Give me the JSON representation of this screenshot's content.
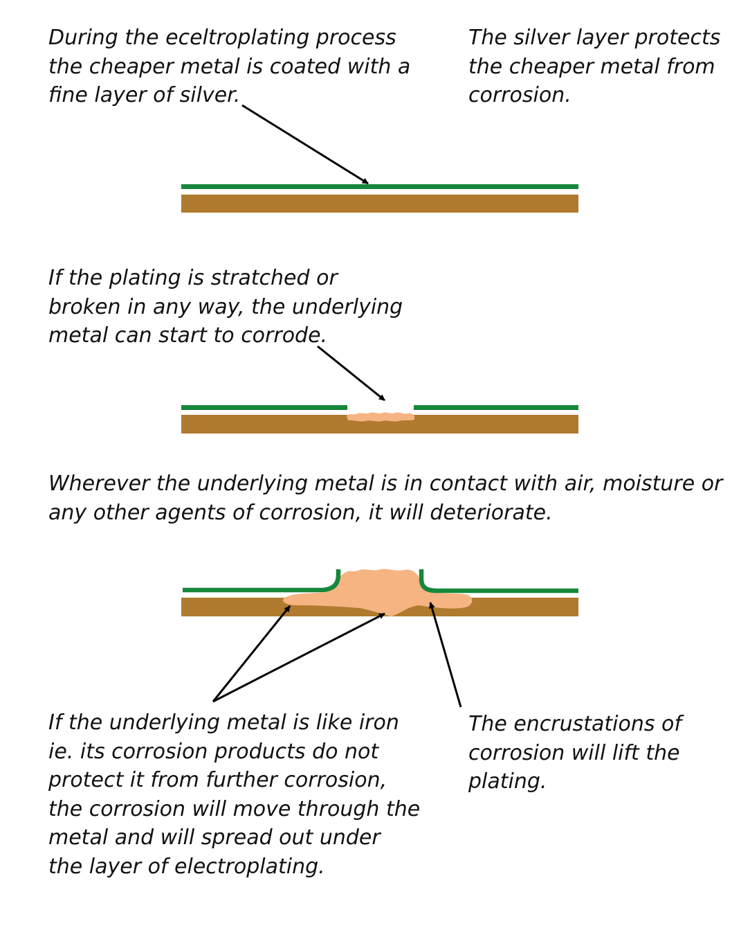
{
  "captions": {
    "electroplating": {
      "lines": [
        "During the eceltroplating process",
        "the cheaper metal is coated with a",
        "fine layer of silver."
      ]
    },
    "protection": {
      "lines": [
        "The silver layer protects",
        "the cheaper metal from",
        "corrosion."
      ]
    },
    "scratch": {
      "lines": [
        "If the plating is stratched or",
        "broken in any way, the underlying",
        "metal can start to corrode."
      ]
    },
    "contact": {
      "lines": [
        "Wherever the underlying metal is in contact with air, moisture or",
        "any other agents of corrosion, it will deteriorate."
      ]
    },
    "iron": {
      "lines": [
        "If the underlying metal is like iron",
        "ie. its corrosion products do not",
        "protect it from further corrosion,",
        "the corrosion will move through the",
        "metal and will spread out under",
        "the layer of electroplating."
      ]
    },
    "lift": {
      "lines": [
        "The encrustations of",
        "corrosion will lift the",
        "plating."
      ]
    }
  },
  "colors": {
    "plating": "#17873b",
    "base_metal": "#b07a2f",
    "corrosion": "#f5b482",
    "arrow": "#000000"
  }
}
